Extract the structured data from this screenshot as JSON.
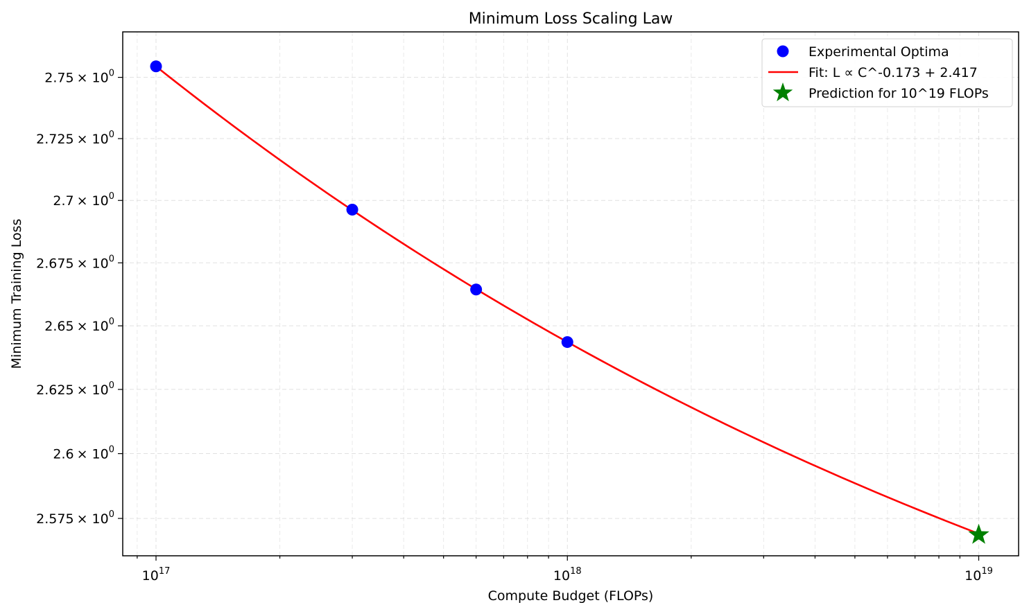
{
  "chart_data": {
    "type": "line",
    "title": "Minimum Loss Scaling Law",
    "xlabel": "Compute Budget (FLOPs)",
    "ylabel": "Minimum Training Loss",
    "xscale": "log",
    "yscale": "log",
    "xlim": [
      8.3e+16,
      1.25e+19
    ],
    "ylim": [
      2.5607,
      2.7687
    ],
    "x_ticks": [
      {
        "value": 1e+17,
        "mantissa": "10",
        "exponent": "17"
      },
      {
        "value": 1e+18,
        "mantissa": "10",
        "exponent": "18"
      },
      {
        "value": 1e+19,
        "mantissa": "10",
        "exponent": "19"
      }
    ],
    "y_ticks": [
      {
        "value": 2.575,
        "label": "2.575",
        "suffix": "× 10",
        "exponent": "0"
      },
      {
        "value": 2.6,
        "label": "2.6",
        "suffix": "× 10",
        "exponent": "0"
      },
      {
        "value": 2.625,
        "label": "2.625",
        "suffix": "× 10",
        "exponent": "0"
      },
      {
        "value": 2.65,
        "label": "2.65",
        "suffix": "× 10",
        "exponent": "0"
      },
      {
        "value": 2.675,
        "label": "2.675",
        "suffix": "× 10",
        "exponent": "0"
      },
      {
        "value": 2.7,
        "label": "2.7",
        "suffix": "× 10",
        "exponent": "0"
      },
      {
        "value": 2.725,
        "label": "2.725",
        "suffix": "× 10",
        "exponent": "0"
      },
      {
        "value": 2.75,
        "label": "2.75",
        "suffix": "× 10",
        "exponent": "0"
      }
    ],
    "grid": true,
    "legend_position": "top-right",
    "series": [
      {
        "name": "Experimental Optima",
        "kind": "scatter",
        "color": "#0000ff",
        "x": [
          1e+17,
          3e+17,
          6e+17,
          1e+18
        ],
        "y": [
          2.7545,
          2.6963,
          2.6644,
          2.6436
        ]
      },
      {
        "name": "Fit: L ∝ C^-0.173 + 2.417",
        "kind": "line",
        "color": "#ff0000",
        "fit": {
          "exponent": -0.173,
          "offset": 2.417,
          "coef_at_1e17": 0.3375
        },
        "x_range": [
          1e+17,
          1e+19
        ]
      },
      {
        "name": "Prediction for 10^19 FLOPs",
        "kind": "star",
        "color": "#008000",
        "x": [
          1e+19
        ],
        "y": [
          2.5687
        ]
      }
    ]
  }
}
